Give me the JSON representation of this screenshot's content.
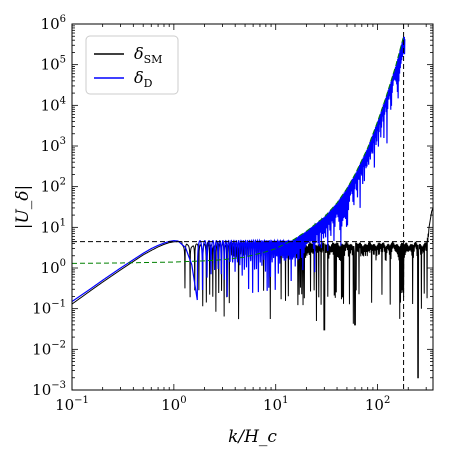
{
  "chart_data": {
    "type": "line",
    "title": "",
    "xlabel": "k/H_c",
    "ylabel": "|U_δ|",
    "xscale": "log",
    "yscale": "log",
    "xlim": [
      0.1,
      350
    ],
    "ylim": [
      0.001,
      1000000
    ],
    "x_ticks": [
      {
        "value": 0.1,
        "base": "10",
        "exp": "−1"
      },
      {
        "value": 1,
        "base": "10",
        "exp": "0"
      },
      {
        "value": 10,
        "base": "10",
        "exp": "1"
      },
      {
        "value": 100,
        "base": "10",
        "exp": "2"
      }
    ],
    "y_ticks": [
      {
        "value": 0.001,
        "base": "10",
        "exp": "−3"
      },
      {
        "value": 0.01,
        "base": "10",
        "exp": "−2"
      },
      {
        "value": 0.1,
        "base": "10",
        "exp": "−1"
      },
      {
        "value": 1,
        "base": "10",
        "exp": "0"
      },
      {
        "value": 10,
        "base": "10",
        "exp": "1"
      },
      {
        "value": 100,
        "base": "10",
        "exp": "2"
      },
      {
        "value": 1000,
        "base": "10",
        "exp": "3"
      },
      {
        "value": 10000,
        "base": "10",
        "exp": "4"
      },
      {
        "value": 100000,
        "base": "10",
        "exp": "5"
      },
      {
        "value": 1000000,
        "base": "10",
        "exp": "6"
      }
    ],
    "legend": {
      "position": "top-left",
      "entries": [
        {
          "symbol": "δ",
          "sub": "SM",
          "color": "#000000"
        },
        {
          "symbol": "δ",
          "sub": "D",
          "color": "#0000ff"
        }
      ]
    },
    "series": [
      {
        "key": "delta_sm",
        "color": "#000000",
        "x": [
          0.1,
          0.15,
          0.2,
          0.3,
          0.4,
          0.5,
          0.6,
          0.7,
          0.8,
          0.9,
          1.0,
          1.1,
          1.3,
          1.5,
          1.7,
          2.0,
          2.5,
          3.0,
          4.0,
          5.0,
          6.0,
          7.0,
          8.0,
          10,
          12,
          15,
          18,
          22,
          27,
          33,
          40,
          50,
          60,
          75,
          90,
          110,
          130,
          150,
          170,
          180,
          200,
          220,
          250,
          270,
          280,
          300,
          320,
          340,
          350
        ],
        "y": [
          0.13,
          0.27,
          0.45,
          0.9,
          1.45,
          2.1,
          2.7,
          3.3,
          3.8,
          4.2,
          4.4,
          4.45,
          4.45,
          4.45,
          4.45,
          4.45,
          4.45,
          4.45,
          4.45,
          4.45,
          4.45,
          4.45,
          4.45,
          4.45,
          4.45,
          4.45,
          4.45,
          4.45,
          4.45,
          4.45,
          4.45,
          4.45,
          4.45,
          4.45,
          4.45,
          4.45,
          4.45,
          4.45,
          4.45,
          4.45,
          4.45,
          4.45,
          4.45,
          4.45,
          4.45,
          4.45,
          10,
          25,
          30
        ],
        "oscillation": {
          "start": 1.2,
          "period_log10": 0.06,
          "dip_floor": 0.03,
          "deep_dips": [
            {
              "x": 250,
              "y": 0.002
            },
            {
              "x": 30,
              "y": 0.03
            },
            {
              "x": 60,
              "y": 0.04
            }
          ]
        }
      },
      {
        "key": "delta_d",
        "color": "#0000ff",
        "x": [
          0.1,
          0.15,
          0.2,
          0.3,
          0.4,
          0.5,
          0.6,
          0.7,
          0.8,
          0.9,
          1.0,
          1.1,
          1.3,
          1.5,
          1.7
        ],
        "y": [
          0.15,
          0.3,
          0.5,
          1.0,
          1.6,
          2.3,
          3.0,
          3.6,
          4.1,
          4.5,
          4.7,
          4.6,
          3.2,
          1.2,
          0.16
        ]
      },
      {
        "key": "envelope",
        "color": "#008000",
        "dash": "5,3",
        "x": [
          0.1,
          0.3,
          1,
          2,
          3,
          5,
          8,
          10,
          15,
          20,
          30,
          40,
          50,
          60,
          80,
          100,
          120,
          150,
          180
        ],
        "y": [
          1.3,
          1.33,
          1.4,
          1.5,
          1.6,
          1.85,
          2.5,
          3.0,
          5.0,
          8.0,
          18,
          40,
          90,
          200,
          900,
          4000,
          15000,
          90000,
          500000
        ]
      }
    ],
    "reference_lines": [
      {
        "orientation": "horizontal",
        "value": 4.45,
        "color": "#000000",
        "dash": "5,3"
      },
      {
        "orientation": "vertical",
        "value": 180,
        "color": "#000000",
        "dash": "5,3"
      }
    ]
  }
}
